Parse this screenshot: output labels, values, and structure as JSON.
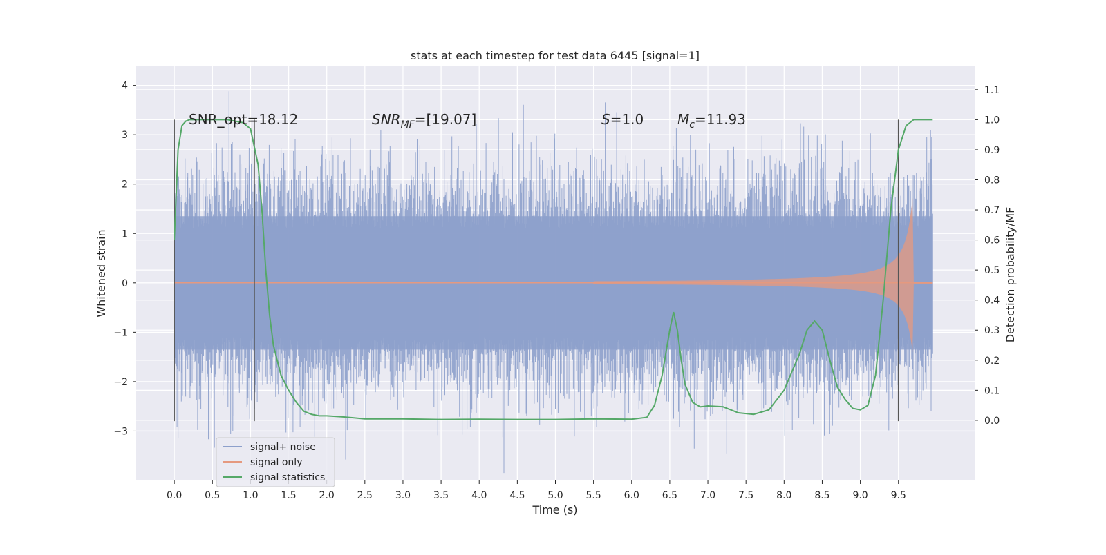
{
  "chart_data": {
    "type": "line",
    "title": "stats at each timestep for test data 6445 [signal=1]",
    "xlabel": "Time (s)",
    "ylabel_left": "Whitened strain",
    "ylabel_right": "Detection probability/MF",
    "xlim": [
      -0.5,
      10.5
    ],
    "ylim_left": [
      -4.0,
      4.4
    ],
    "ylim_right": [
      -0.2,
      1.18
    ],
    "grid": true,
    "x_ticks": [
      "0.0",
      "0.5",
      "1.0",
      "1.5",
      "2.0",
      "2.5",
      "3.0",
      "3.5",
      "4.0",
      "4.5",
      "5.0",
      "5.5",
      "6.0",
      "6.5",
      "7.0",
      "7.5",
      "8.0",
      "8.5",
      "9.0",
      "9.5"
    ],
    "y_left_ticks": [
      "4",
      "3",
      "2",
      "1",
      "0",
      "−1",
      "−2",
      "−3"
    ],
    "y_left_tick_values": [
      4,
      3,
      2,
      1,
      0,
      -1,
      -2,
      -3
    ],
    "y_right_ticks": [
      "1.1",
      "1.0",
      "0.9",
      "0.8",
      "0.7",
      "0.6",
      "0.5",
      "0.4",
      "0.3",
      "0.2",
      "0.1",
      "0.0"
    ],
    "y_right_tick_values": [
      1.1,
      1.0,
      0.9,
      0.8,
      0.7,
      0.6,
      0.5,
      0.4,
      0.3,
      0.2,
      0.1,
      0.0
    ],
    "annotations": {
      "snr_opt": "SNR_opt=18.12",
      "snr_mf_main": "SNR",
      "snr_mf_sub": "MF",
      "snr_mf_rest": "=[19.07]",
      "s_main": "S",
      "s_rest": "=1.0",
      "mc_main": "M",
      "mc_sub": "c",
      "mc_rest": "=11.93"
    },
    "vertical_markers": [
      0.0,
      1.05,
      9.5
    ],
    "legend": {
      "placement": "lower-left",
      "entries": [
        "signal+ noise",
        "signal only",
        "signal statistics"
      ]
    },
    "colors": {
      "signal_noise": "#8da0cb",
      "signal_only": "#e5997f",
      "signal_statistics": "#55a868",
      "background": "#eaeaf2"
    },
    "series": [
      {
        "name": "signal statistics",
        "axis": "right",
        "x": [
          0.0,
          0.05,
          0.1,
          0.15,
          0.2,
          0.3,
          0.5,
          0.7,
          0.9,
          1.0,
          1.1,
          1.15,
          1.2,
          1.25,
          1.3,
          1.4,
          1.5,
          1.6,
          1.7,
          1.8,
          1.9,
          2.0,
          2.2,
          2.5,
          3.0,
          3.5,
          4.0,
          4.5,
          5.0,
          5.5,
          6.0,
          6.2,
          6.3,
          6.4,
          6.5,
          6.55,
          6.6,
          6.65,
          6.7,
          6.8,
          6.9,
          7.0,
          7.2,
          7.4,
          7.6,
          7.8,
          8.0,
          8.2,
          8.3,
          8.4,
          8.5,
          8.6,
          8.7,
          8.8,
          8.9,
          9.0,
          9.1,
          9.2,
          9.3,
          9.4,
          9.5,
          9.6,
          9.7,
          9.8,
          9.9,
          9.95
        ],
        "y": [
          0.6,
          0.9,
          0.98,
          0.995,
          1.0,
          1.0,
          1.0,
          1.0,
          0.99,
          0.97,
          0.85,
          0.7,
          0.5,
          0.35,
          0.25,
          0.15,
          0.1,
          0.06,
          0.03,
          0.02,
          0.015,
          0.015,
          0.012,
          0.005,
          0.005,
          0.003,
          0.004,
          0.003,
          0.003,
          0.005,
          0.004,
          0.01,
          0.05,
          0.15,
          0.3,
          0.36,
          0.3,
          0.2,
          0.12,
          0.06,
          0.045,
          0.048,
          0.045,
          0.025,
          0.02,
          0.035,
          0.1,
          0.22,
          0.3,
          0.33,
          0.3,
          0.2,
          0.11,
          0.07,
          0.04,
          0.035,
          0.05,
          0.15,
          0.4,
          0.7,
          0.9,
          0.98,
          1.0,
          1.0,
          1.0,
          1.0
        ]
      }
    ]
  }
}
